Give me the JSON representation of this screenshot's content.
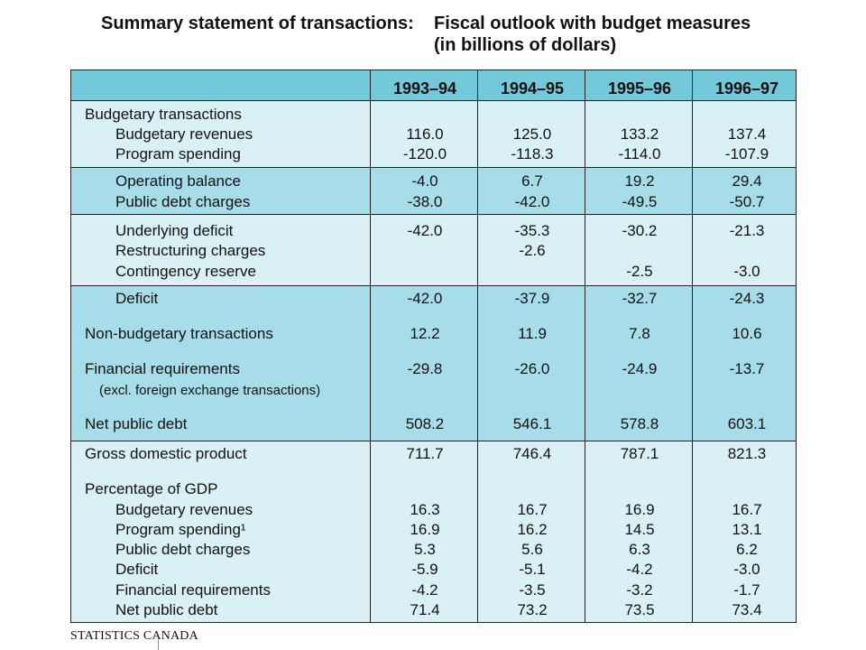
{
  "title": {
    "left": "Summary statement of transactions:",
    "right": "Fiscal outlook with budget measures",
    "units": "(in billions of dollars)"
  },
  "columns": [
    "1993–94",
    "1994–95",
    "1995–96",
    "1996–97"
  ],
  "rows": [
    {
      "label": "Budgetary transactions",
      "values": [
        "",
        "",
        "",
        ""
      ]
    },
    {
      "label": "Budgetary revenues",
      "values": [
        "116.0",
        "125.0",
        "133.2",
        "137.4"
      ]
    },
    {
      "label": "Program spending",
      "values": [
        "-120.0",
        "-118.3",
        "-114.0",
        "-107.9"
      ]
    },
    {
      "label": "Operating balance",
      "values": [
        "-4.0",
        "6.7",
        "19.2",
        "29.4"
      ]
    },
    {
      "label": "Public debt charges",
      "values": [
        "-38.0",
        "-42.0",
        "-49.5",
        "-50.7"
      ]
    },
    {
      "label": "Underlying deficit",
      "values": [
        "-42.0",
        "-35.3",
        "-30.2",
        "-21.3"
      ]
    },
    {
      "label": "Restructuring charges",
      "values": [
        "",
        "-2.6",
        "",
        ""
      ]
    },
    {
      "label": "Contingency reserve",
      "values": [
        "",
        "",
        "-2.5",
        "-3.0"
      ]
    },
    {
      "label": "Deficit",
      "values": [
        "-42.0",
        "-37.9",
        "-32.7",
        "-24.3"
      ]
    },
    {
      "label": "Non-budgetary transactions",
      "values": [
        "12.2",
        "11.9",
        "7.8",
        "10.6"
      ]
    },
    {
      "label": "Financial requirements",
      "values": [
        "-29.8",
        "-26.0",
        "-24.9",
        "-13.7"
      ]
    },
    {
      "label": "(excl. foreign exchange transactions)",
      "values": [
        "",
        "",
        "",
        ""
      ]
    },
    {
      "label": "Net public debt",
      "values": [
        "508.2",
        "546.1",
        "578.8",
        "603.1"
      ]
    },
    {
      "label": "Gross domestic product",
      "values": [
        "711.7",
        "746.4",
        "787.1",
        "821.3"
      ]
    },
    {
      "label": "Percentage of GDP",
      "values": [
        "",
        "",
        "",
        ""
      ]
    },
    {
      "label": "Budgetary revenues",
      "values": [
        "16.3",
        "16.7",
        "16.9",
        "16.7"
      ]
    },
    {
      "label": "Program spending¹",
      "values": [
        "16.9",
        "16.2",
        "14.5",
        "13.1"
      ]
    },
    {
      "label": "Public debt charges",
      "values": [
        "5.3",
        "5.6",
        "6.3",
        "6.2"
      ]
    },
    {
      "label": "Deficit",
      "values": [
        "-5.9",
        "-5.1",
        "-4.2",
        "-3.0"
      ]
    },
    {
      "label": "Financial requirements",
      "values": [
        "-4.2",
        "-3.5",
        "-3.2",
        "-1.7"
      ]
    },
    {
      "label": "Net public debt",
      "values": [
        "71.4",
        "73.2",
        "73.5",
        "73.4"
      ]
    }
  ],
  "footer": "STATISTICS CANADA",
  "colors": {
    "header": "#73c8da",
    "dark_band": "#a7dde8",
    "light_band": "#d9f0f4"
  }
}
